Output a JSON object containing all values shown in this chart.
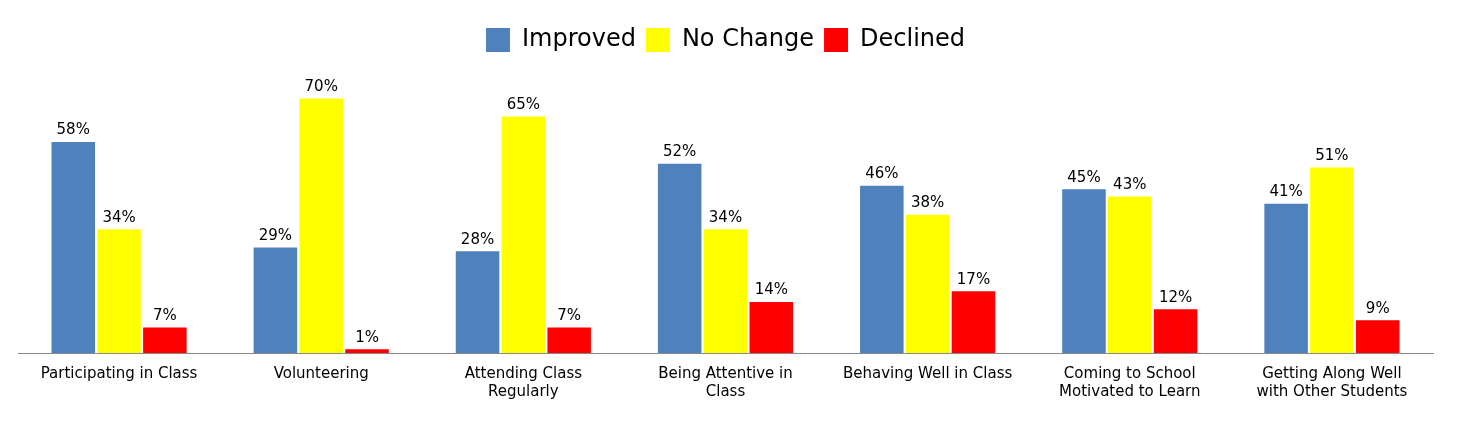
{
  "chart_data": {
    "type": "bar",
    "categories": [
      "Participating in Class",
      "Volunteering",
      "Attending Class Regularly",
      "Being Attentive in Class",
      "Behaving Well in Class",
      "Coming to School Motivated to Learn",
      "Getting Along Well with Other Students"
    ],
    "series": [
      {
        "name": "Improved",
        "color": "#4f81bd",
        "values": [
          58,
          29,
          28,
          52,
          46,
          45,
          41
        ],
        "value_labels": [
          "58%",
          "29%",
          "28%",
          "52%",
          "46%",
          "45%",
          "41%"
        ]
      },
      {
        "name": "No Change",
        "color": "#ffff00",
        "values": [
          34,
          70,
          65,
          34,
          38,
          43,
          51
        ],
        "value_labels": [
          "34%",
          "70%",
          "65%",
          "34%",
          "38%",
          "43%",
          "51%"
        ]
      },
      {
        "name": "Declined",
        "color": "#ff0000",
        "values": [
          7,
          1,
          7,
          14,
          17,
          12,
          9
        ],
        "value_labels": [
          "7%",
          "1%",
          "7%",
          "14%",
          "17%",
          "12%",
          "9%"
        ]
      }
    ],
    "legend": "top",
    "grid": false
  }
}
